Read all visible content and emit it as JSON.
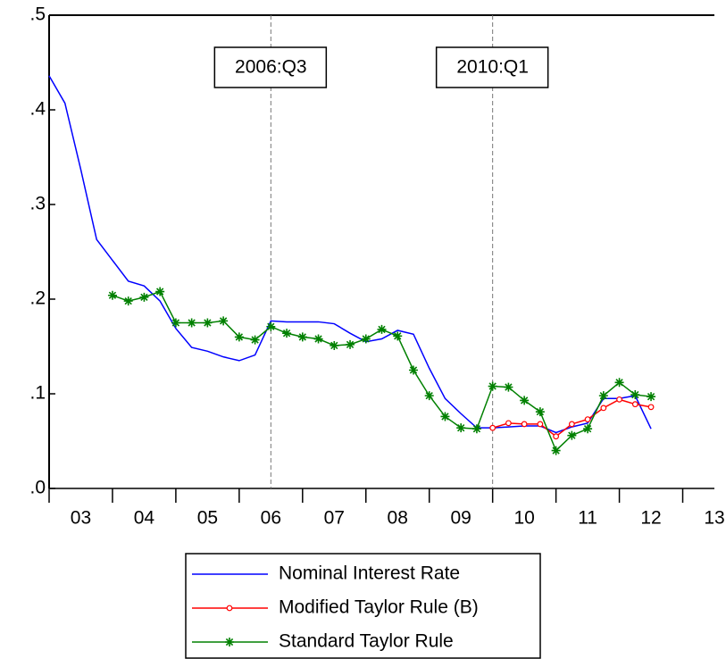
{
  "chart_data": {
    "type": "line",
    "x": [
      2003,
      2003.25,
      2003.5,
      2003.75,
      2004,
      2004.25,
      2004.5,
      2004.75,
      2005,
      2005.25,
      2005.5,
      2005.75,
      2006,
      2006.25,
      2006.5,
      2006.75,
      2007,
      2007.25,
      2007.5,
      2007.75,
      2008,
      2008.25,
      2008.5,
      2008.75,
      2009,
      2009.25,
      2009.5,
      2009.75,
      2010,
      2010.25,
      2010.5,
      2010.75,
      2011,
      2011.25,
      2011.5,
      2011.75,
      2012,
      2012.25,
      2012.5
    ],
    "series": [
      {
        "name": "Nominal Interest Rate",
        "color": "#0000ff",
        "marker": "none",
        "values": [
          0.436,
          0.407,
          0.337,
          0.263,
          0.241,
          0.219,
          0.214,
          0.198,
          0.169,
          0.149,
          0.145,
          0.139,
          0.135,
          0.141,
          0.177,
          0.176,
          0.176,
          0.176,
          0.174,
          0.164,
          0.155,
          0.158,
          0.167,
          0.163,
          0.127,
          0.095,
          0.079,
          0.064,
          0.064,
          0.065,
          0.066,
          0.066,
          0.059,
          0.065,
          0.069,
          0.095,
          0.095,
          0.098,
          0.063
        ]
      },
      {
        "name": "Modified Taylor Rule (B)",
        "color": "#ff0000",
        "marker": "circle",
        "values": [
          null,
          null,
          null,
          null,
          null,
          null,
          null,
          null,
          null,
          null,
          null,
          null,
          null,
          null,
          null,
          null,
          null,
          null,
          null,
          null,
          null,
          null,
          null,
          null,
          null,
          null,
          null,
          null,
          0.064,
          0.069,
          0.068,
          0.068,
          0.055,
          0.068,
          0.073,
          0.085,
          0.094,
          0.089,
          0.086
        ]
      },
      {
        "name": "Standard Taylor Rule",
        "color": "#008000",
        "marker": "star",
        "values": [
          null,
          null,
          null,
          null,
          0.204,
          0.198,
          0.202,
          0.208,
          0.175,
          0.175,
          0.175,
          0.177,
          0.16,
          0.157,
          0.171,
          0.164,
          0.16,
          0.158,
          0.151,
          0.152,
          0.158,
          0.168,
          0.161,
          0.125,
          0.098,
          0.076,
          0.064,
          0.063,
          0.108,
          0.107,
          0.093,
          0.081,
          0.04,
          0.056,
          0.063,
          0.098,
          0.112,
          0.099,
          0.097
        ]
      }
    ],
    "xlim": [
      2003,
      2013.5
    ],
    "xticks": [
      {
        "value": 2003,
        "label": "03"
      },
      {
        "value": 2004,
        "label": "04"
      },
      {
        "value": 2005,
        "label": "05"
      },
      {
        "value": 2006,
        "label": "06"
      },
      {
        "value": 2007,
        "label": "07"
      },
      {
        "value": 2008,
        "label": "08"
      },
      {
        "value": 2009,
        "label": "09"
      },
      {
        "value": 2010,
        "label": "10"
      },
      {
        "value": 2011,
        "label": "11"
      },
      {
        "value": 2012,
        "label": "12"
      },
      {
        "value": 2013,
        "label": "13"
      }
    ],
    "ylim": [
      0,
      0.5
    ],
    "yticks": [
      {
        "value": 0,
        "label": ".0"
      },
      {
        "value": 0.1,
        "label": ".1"
      },
      {
        "value": 0.2,
        "label": ".2"
      },
      {
        "value": 0.3,
        "label": ".3"
      },
      {
        "value": 0.4,
        "label": ".4"
      },
      {
        "value": 0.5,
        "label": ".5"
      }
    ],
    "annotations": [
      {
        "x": 2006.5,
        "label": "2006:Q3"
      },
      {
        "x": 2010,
        "label": "2010:Q1"
      }
    ],
    "legend": "bottom"
  }
}
